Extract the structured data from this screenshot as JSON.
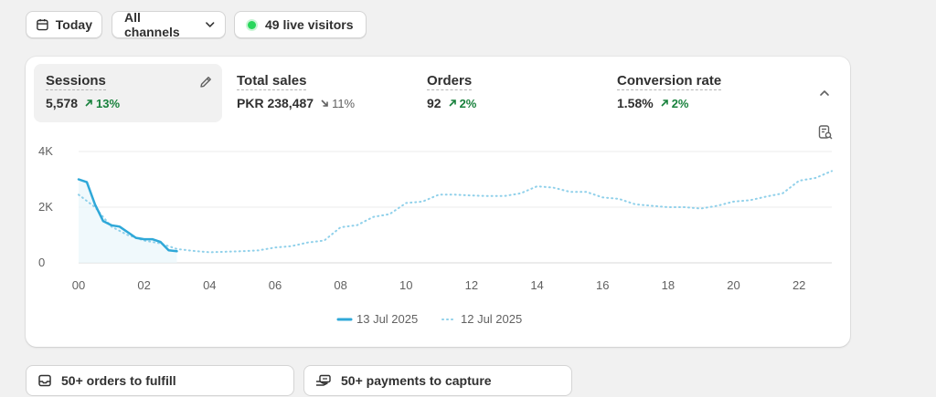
{
  "filters": {
    "date_label": "Today",
    "channels_label": "All channels",
    "live_visitors_label": "49 live visitors"
  },
  "metrics": [
    {
      "label": "Sessions",
      "value": "5,578",
      "change": "13%",
      "direction": "up",
      "active": true
    },
    {
      "label": "Total sales",
      "value": "PKR 238,487",
      "change": "11%",
      "direction": "down",
      "active": false
    },
    {
      "label": "Orders",
      "value": "92",
      "change": "2%",
      "direction": "up",
      "active": false
    },
    {
      "label": "Conversion rate",
      "value": "1.58%",
      "change": "2%",
      "direction": "up",
      "active": false
    }
  ],
  "colors": {
    "accent": "#2fa8d8",
    "positive": "#18813c",
    "live_dot": "#29d65c"
  },
  "chart_data": {
    "type": "line",
    "ylim": [
      0,
      4000
    ],
    "xlim": [
      0,
      23
    ],
    "y_ticks": [
      {
        "value": 0,
        "label": "0"
      },
      {
        "value": 2000,
        "label": "2K"
      },
      {
        "value": 4000,
        "label": "4K"
      }
    ],
    "x_ticks": [
      {
        "value": 0,
        "label": "00"
      },
      {
        "value": 2,
        "label": "02"
      },
      {
        "value": 4,
        "label": "04"
      },
      {
        "value": 6,
        "label": "06"
      },
      {
        "value": 8,
        "label": "08"
      },
      {
        "value": 10,
        "label": "10"
      },
      {
        "value": 12,
        "label": "12"
      },
      {
        "value": 14,
        "label": "14"
      },
      {
        "value": 16,
        "label": "16"
      },
      {
        "value": 18,
        "label": "18"
      },
      {
        "value": 20,
        "label": "20"
      },
      {
        "value": 22,
        "label": "22"
      }
    ],
    "series": [
      {
        "name": "13 Jul 2025",
        "style": "solid",
        "color": "#2fa8d8",
        "x": [
          0,
          0.25,
          0.5,
          0.75,
          1,
          1.25,
          1.5,
          1.75,
          2,
          2.25,
          2.5,
          2.75,
          3
        ],
        "y": [
          3000,
          2900,
          2100,
          1500,
          1350,
          1300,
          1100,
          900,
          850,
          850,
          750,
          450,
          420
        ]
      },
      {
        "name": "12 Jul 2025",
        "style": "dotted",
        "color": "#8fd0ea",
        "x": [
          0,
          0.5,
          1,
          1.5,
          2,
          2.5,
          3,
          3.5,
          4,
          4.5,
          5,
          5.5,
          6,
          6.5,
          7,
          7.5,
          8,
          8.5,
          9,
          9.5,
          10,
          10.5,
          11,
          11.5,
          12,
          12.5,
          13,
          13.5,
          14,
          14.5,
          15,
          15.5,
          16,
          16.5,
          17,
          17.5,
          18,
          18.5,
          19,
          19.5,
          20,
          20.5,
          21,
          21.5,
          22,
          22.5,
          23
        ],
        "y": [
          2450,
          2000,
          1300,
          1000,
          800,
          700,
          500,
          430,
          380,
          400,
          420,
          450,
          550,
          600,
          730,
          800,
          1280,
          1350,
          1650,
          1750,
          2150,
          2200,
          2450,
          2450,
          2420,
          2400,
          2400,
          2500,
          2750,
          2700,
          2550,
          2550,
          2350,
          2300,
          2100,
          2050,
          2000,
          2000,
          1950,
          2050,
          2200,
          2250,
          2380,
          2500,
          2950,
          3050,
          3300
        ]
      }
    ]
  },
  "actions": {
    "orders_label": "50+ orders to fulfill",
    "payments_label": "50+ payments to capture"
  }
}
